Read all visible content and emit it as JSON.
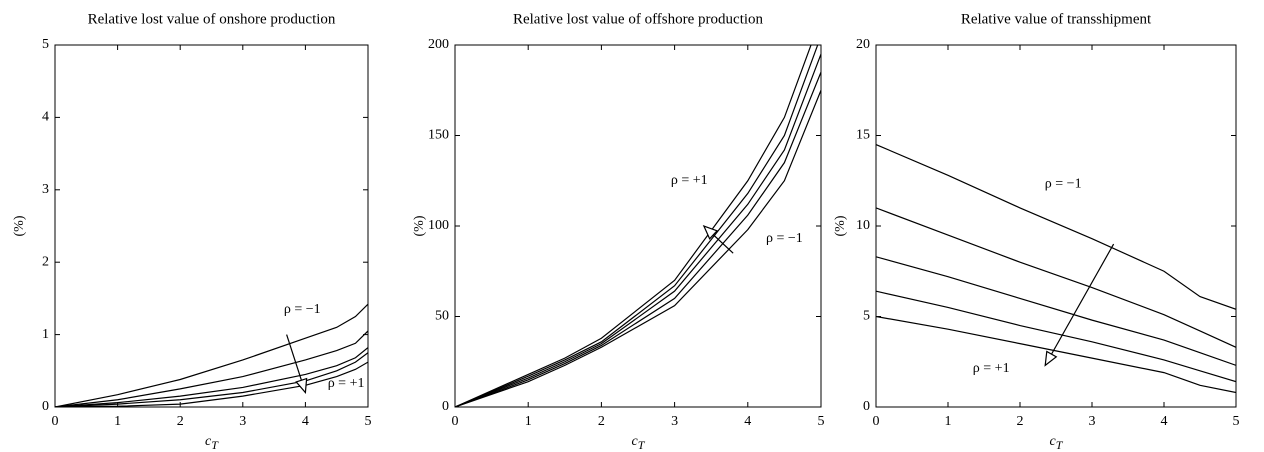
{
  "chart_data": [
    {
      "type": "line",
      "title": "Relative lost value of onshore production",
      "xlabel": "c",
      "xlabel_sub": "T",
      "ylabel": "(%)",
      "x": [
        0,
        1,
        2,
        3,
        4,
        4.5,
        4.8,
        5
      ],
      "series": [
        {
          "color": "#000000",
          "values": [
            0,
            0.17,
            0.38,
            0.65,
            0.95,
            1.1,
            1.25,
            1.42
          ]
        },
        {
          "color": "#000000",
          "values": [
            0,
            0.1,
            0.25,
            0.42,
            0.65,
            0.78,
            0.88,
            1.05
          ]
        },
        {
          "color": "#000000",
          "values": [
            0,
            0.06,
            0.15,
            0.27,
            0.45,
            0.57,
            0.68,
            0.82
          ]
        },
        {
          "color": "#000000",
          "values": [
            0,
            0.04,
            0.1,
            0.2,
            0.36,
            0.5,
            0.62,
            0.75
          ]
        },
        {
          "color": "#000000",
          "values": [
            0,
            0.01,
            0.04,
            0.15,
            0.3,
            0.42,
            0.52,
            0.62
          ]
        }
      ],
      "annotations": [
        "ρ = −1",
        "ρ = +1"
      ],
      "xlim": [
        0,
        5
      ],
      "xticks": [
        0,
        1,
        2,
        3,
        4,
        5
      ],
      "ylim": [
        0,
        5
      ],
      "yticks": [
        0,
        1,
        2,
        3,
        4,
        5
      ]
    },
    {
      "type": "line",
      "title": "Relative lost value of offshore production",
      "xlabel": "c",
      "xlabel_sub": "T",
      "ylabel": "(%)",
      "x": [
        0,
        1,
        1.5,
        2,
        3,
        4,
        4.5,
        5
      ],
      "series": [
        {
          "color": "#000000",
          "values": [
            0,
            18,
            27,
            38,
            70,
            125,
            160,
            215
          ]
        },
        {
          "color": "#000000",
          "values": [
            0,
            17,
            26,
            36,
            67,
            118,
            150,
            205
          ]
        },
        {
          "color": "#000000",
          "values": [
            0,
            16,
            25,
            35,
            64,
            112,
            142,
            195
          ]
        },
        {
          "color": "#000000",
          "values": [
            0,
            15,
            24,
            34,
            60,
            106,
            135,
            185
          ]
        },
        {
          "color": "#000000",
          "values": [
            0,
            14,
            23,
            33,
            56,
            98,
            125,
            175
          ]
        }
      ],
      "annotations": [
        "ρ = +1",
        "ρ = −1"
      ],
      "xlim": [
        0,
        5
      ],
      "xticks": [
        0,
        1,
        2,
        3,
        4,
        5
      ],
      "ylim": [
        0,
        200
      ],
      "yticks": [
        0,
        50,
        100,
        150,
        200
      ]
    },
    {
      "type": "line",
      "title": "Relative value of transshipment",
      "xlabel": "c",
      "xlabel_sub": "T",
      "ylabel": "(%)",
      "x": [
        0,
        1,
        2,
        3,
        4,
        4.5,
        5
      ],
      "series": [
        {
          "color": "#000000",
          "values": [
            14.5,
            12.8,
            11,
            9.3,
            7.5,
            6.1,
            5.4
          ]
        },
        {
          "color": "#000000",
          "values": [
            11,
            9.5,
            8,
            6.6,
            5.1,
            4.2,
            3.3
          ]
        },
        {
          "color": "#000000",
          "values": [
            8.3,
            7.2,
            6,
            4.8,
            3.7,
            3,
            2.3
          ]
        },
        {
          "color": "#000000",
          "values": [
            6.4,
            5.5,
            4.5,
            3.6,
            2.6,
            2,
            1.4
          ]
        },
        {
          "color": "#000000",
          "values": [
            5,
            4.3,
            3.5,
            2.7,
            1.9,
            1.2,
            0.8
          ]
        }
      ],
      "annotations": [
        "ρ = −1",
        "ρ = +1"
      ],
      "xlim": [
        0,
        5
      ],
      "xticks": [
        0,
        1,
        2,
        3,
        4,
        5
      ],
      "ylim": [
        0,
        20
      ],
      "yticks": [
        0,
        5,
        10,
        15,
        20
      ]
    }
  ]
}
